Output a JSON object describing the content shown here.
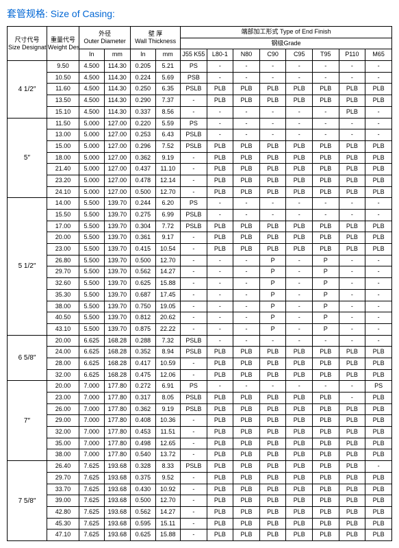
{
  "title": "套管规格: Size of Casing:",
  "headers": {
    "size_cn": "尺寸代号",
    "size_en": "Size Designation",
    "weight_cn": "重量代号",
    "weight_en": "Weight Designation",
    "od_cn": "外径",
    "od_en": "Outer Diameter",
    "wall_cn": "壁 厚",
    "wall_en": "Wall Thickness",
    "end_cn": "端部加工形式",
    "end_en": "Type of End Finish",
    "grade_cn": "钢级",
    "grade_en": "Grade",
    "in": "In",
    "mm": "mm",
    "grades": [
      "J55 K55",
      "L80-1",
      "N80",
      "C90",
      "C95",
      "T95",
      "P110",
      "M65"
    ]
  },
  "groups": [
    {
      "size": "4 1/2″",
      "rows": [
        {
          "w": "9.50",
          "oi": "4.500",
          "om": "114.30",
          "wi": "0.205",
          "wm": "5.21",
          "g": [
            "PS",
            "-",
            "-",
            "-",
            "-",
            "-",
            "-",
            "-"
          ]
        },
        {
          "w": "10.50",
          "oi": "4.500",
          "om": "114.30",
          "wi": "0.224",
          "wm": "5.69",
          "g": [
            "PSB",
            "-",
            "-",
            "-",
            "-",
            "-",
            "-",
            "-"
          ]
        },
        {
          "w": "11.60",
          "oi": "4.500",
          "om": "114.30",
          "wi": "0.250",
          "wm": "6.35",
          "g": [
            "PSLB",
            "PLB",
            "PLB",
            "PLB",
            "PLB",
            "PLB",
            "PLB",
            "PLB"
          ]
        },
        {
          "w": "13.50",
          "oi": "4.500",
          "om": "114.30",
          "wi": "0.290",
          "wm": "7.37",
          "g": [
            "-",
            "PLB",
            "PLB",
            "PLB",
            "PLB",
            "PLB",
            "PLB",
            "PLB"
          ]
        },
        {
          "w": "15.10",
          "oi": "4.500",
          "om": "114.30",
          "wi": "0.337",
          "wm": "8.56",
          "g": [
            "-",
            "-",
            "-",
            "-",
            "-",
            "-",
            "PLB",
            "-"
          ]
        }
      ]
    },
    {
      "size": "5″",
      "rows": [
        {
          "w": "11.50",
          "oi": "5.000",
          "om": "127.00",
          "wi": "0.220",
          "wm": "5.59",
          "g": [
            "PS",
            "-",
            "-",
            "-",
            "-",
            "-",
            "-",
            "-"
          ]
        },
        {
          "w": "13.00",
          "oi": "5.000",
          "om": "127.00",
          "wi": "0.253",
          "wm": "6.43",
          "g": [
            "PSLB",
            "-",
            "-",
            "-",
            "-",
            "-",
            "-",
            "-"
          ]
        },
        {
          "w": "15.00",
          "oi": "5.000",
          "om": "127.00",
          "wi": "0.296",
          "wm": "7.52",
          "g": [
            "PSLB",
            "PLB",
            "PLB",
            "PLB",
            "PLB",
            "PLB",
            "PLB",
            "PLB"
          ]
        },
        {
          "w": "18.00",
          "oi": "5.000",
          "om": "127.00",
          "wi": "0.362",
          "wm": "9.19",
          "g": [
            "-",
            "PLB",
            "PLB",
            "PLB",
            "PLB",
            "PLB",
            "PLB",
            "PLB"
          ]
        },
        {
          "w": "21.40",
          "oi": "5.000",
          "om": "127.00",
          "wi": "0.437",
          "wm": "11.10",
          "g": [
            "-",
            "PLB",
            "PLB",
            "PLB",
            "PLB",
            "PLB",
            "PLB",
            "PLB"
          ]
        },
        {
          "w": "23.20",
          "oi": "5.000",
          "om": "127.00",
          "wi": "0.478",
          "wm": "12.14",
          "g": [
            "-",
            "PLB",
            "PLB",
            "PLB",
            "PLB",
            "PLB",
            "PLB",
            "PLB"
          ]
        },
        {
          "w": "24.10",
          "oi": "5.000",
          "om": "127.00",
          "wi": "0.500",
          "wm": "12.70",
          "g": [
            "-",
            "PLB",
            "PLB",
            "PLB",
            "PLB",
            "PLB",
            "PLB",
            "PLB"
          ]
        }
      ]
    },
    {
      "size": "5 1/2″",
      "rows": [
        {
          "w": "14.00",
          "oi": "5.500",
          "om": "139.70",
          "wi": "0.244",
          "wm": "6.20",
          "g": [
            "PS",
            "-",
            "-",
            "-",
            "-",
            "-",
            "-",
            "-"
          ]
        },
        {
          "w": "15.50",
          "oi": "5.500",
          "om": "139.70",
          "wi": "0.275",
          "wm": "6.99",
          "g": [
            "PSLB",
            "-",
            "-",
            "-",
            "-",
            "-",
            "-",
            "-"
          ]
        },
        {
          "w": "17.00",
          "oi": "5.500",
          "om": "139.70",
          "wi": "0.304",
          "wm": "7.72",
          "g": [
            "PSLB",
            "PLB",
            "PLB",
            "PLB",
            "PLB",
            "PLB",
            "PLB",
            "PLB"
          ]
        },
        {
          "w": "20.00",
          "oi": "5.500",
          "om": "139.70",
          "wi": "0.361",
          "wm": "9.17",
          "g": [
            "-",
            "PLB",
            "PLB",
            "PLB",
            "PLB",
            "PLB",
            "PLB",
            "PLB"
          ]
        },
        {
          "w": "23.00",
          "oi": "5.500",
          "om": "139.70",
          "wi": "0.415",
          "wm": "10.54",
          "g": [
            "-",
            "PLB",
            "PLB",
            "PLB",
            "PLB",
            "PLB",
            "PLB",
            "PLB"
          ]
        },
        {
          "w": "26.80",
          "oi": "5.500",
          "om": "139.70",
          "wi": "0.500",
          "wm": "12.70",
          "g": [
            "-",
            "-",
            "-",
            "P",
            "-",
            "P",
            "-",
            "-"
          ]
        },
        {
          "w": "29.70",
          "oi": "5.500",
          "om": "139.70",
          "wi": "0.562",
          "wm": "14.27",
          "g": [
            "-",
            "-",
            "-",
            "P",
            "-",
            "P",
            "-",
            "-"
          ]
        },
        {
          "w": "32.60",
          "oi": "5.500",
          "om": "139.70",
          "wi": "0.625",
          "wm": "15.88",
          "g": [
            "-",
            "-",
            "-",
            "P",
            "-",
            "P",
            "-",
            "-"
          ]
        },
        {
          "w": "35.30",
          "oi": "5.500",
          "om": "139.70",
          "wi": "0.687",
          "wm": "17.45",
          "g": [
            "-",
            "-",
            "-",
            "P",
            "-",
            "P",
            "-",
            "-"
          ]
        },
        {
          "w": "38.00",
          "oi": "5.500",
          "om": "139.70",
          "wi": "0.750",
          "wm": "19.05",
          "g": [
            "-",
            "-",
            "-",
            "P",
            "-",
            "P",
            "-",
            "-"
          ]
        },
        {
          "w": "40.50",
          "oi": "5.500",
          "om": "139.70",
          "wi": "0.812",
          "wm": "20.62",
          "g": [
            "-",
            "-",
            "-",
            "P",
            "-",
            "P",
            "-",
            "-"
          ]
        },
        {
          "w": "43.10",
          "oi": "5.500",
          "om": "139.70",
          "wi": "0.875",
          "wm": "22.22",
          "g": [
            "-",
            "-",
            "-",
            "P",
            "-",
            "P",
            "-",
            "-"
          ]
        }
      ]
    },
    {
      "size": "6 5/8″",
      "rows": [
        {
          "w": "20.00",
          "oi": "6.625",
          "om": "168.28",
          "wi": "0.288",
          "wm": "7.32",
          "g": [
            "PSLB",
            "-",
            "-",
            "-",
            "-",
            "-",
            "-",
            "-"
          ]
        },
        {
          "w": "24.00",
          "oi": "6.625",
          "om": "168.28",
          "wi": "0.352",
          "wm": "8.94",
          "g": [
            "PSLB",
            "PLB",
            "PLB",
            "PLB",
            "PLB",
            "PLB",
            "PLB",
            "PLB"
          ]
        },
        {
          "w": "28.00",
          "oi": "6.625",
          "om": "168.28",
          "wi": "0.417",
          "wm": "10.59",
          "g": [
            "-",
            "PLB",
            "PLB",
            "PLB",
            "PLB",
            "PLB",
            "PLB",
            "PLB"
          ]
        },
        {
          "w": "32.00",
          "oi": "6.625",
          "om": "168.28",
          "wi": "0.475",
          "wm": "12.06",
          "g": [
            "-",
            "PLB",
            "PLB",
            "PLB",
            "PLB",
            "PLB",
            "PLB",
            "PLB"
          ]
        }
      ]
    },
    {
      "size": "7″",
      "rows": [
        {
          "w": "20.00",
          "oi": "7.000",
          "om": "177.80",
          "wi": "0.272",
          "wm": "6.91",
          "g": [
            "PS",
            "-",
            "-",
            "-",
            "-",
            "-",
            "-",
            "PS"
          ]
        },
        {
          "w": "23.00",
          "oi": "7.000",
          "om": "177.80",
          "wi": "0.317",
          "wm": "8.05",
          "g": [
            "PSLB",
            "PLB",
            "PLB",
            "PLB",
            "PLB",
            "PLB",
            "-",
            "PLB"
          ]
        },
        {
          "w": "26.00",
          "oi": "7.000",
          "om": "177.80",
          "wi": "0.362",
          "wm": "9.19",
          "g": [
            "PSLB",
            "PLB",
            "PLB",
            "PLB",
            "PLB",
            "PLB",
            "PLB",
            "PLB"
          ]
        },
        {
          "w": "29.00",
          "oi": "7.000",
          "om": "177.80",
          "wi": "0.408",
          "wm": "10.36",
          "g": [
            "-",
            "PLB",
            "PLB",
            "PLB",
            "PLB",
            "PLB",
            "PLB",
            "PLB"
          ]
        },
        {
          "w": "32.00",
          "oi": "7.000",
          "om": "177.80",
          "wi": "0.453",
          "wm": "11.51",
          "g": [
            "-",
            "PLB",
            "PLB",
            "PLB",
            "PLB",
            "PLB",
            "PLB",
            "PLB"
          ]
        },
        {
          "w": "35.00",
          "oi": "7.000",
          "om": "177.80",
          "wi": "0.498",
          "wm": "12.65",
          "g": [
            "-",
            "PLB",
            "PLB",
            "PLB",
            "PLB",
            "PLB",
            "PLB",
            "PLB"
          ]
        },
        {
          "w": "38.00",
          "oi": "7.000",
          "om": "177.80",
          "wi": "0.540",
          "wm": "13.72",
          "g": [
            "-",
            "PLB",
            "PLB",
            "PLB",
            "PLB",
            "PLB",
            "PLB",
            "PLB"
          ]
        }
      ]
    },
    {
      "size": "7 5/8″",
      "rows": [
        {
          "w": "26.40",
          "oi": "7.625",
          "om": "193.68",
          "wi": "0.328",
          "wm": "8.33",
          "g": [
            "PSLB",
            "PLB",
            "PLB",
            "PLB",
            "PLB",
            "PLB",
            "PLB",
            "-"
          ]
        },
        {
          "w": "29.70",
          "oi": "7.625",
          "om": "193.68",
          "wi": "0.375",
          "wm": "9.52",
          "g": [
            "-",
            "PLB",
            "PLB",
            "PLB",
            "PLB",
            "PLB",
            "PLB",
            "PLB"
          ]
        },
        {
          "w": "33.70",
          "oi": "7.625",
          "om": "193.68",
          "wi": "0.430",
          "wm": "10.92",
          "g": [
            "-",
            "PLB",
            "PLB",
            "PLB",
            "PLB",
            "PLB",
            "PLB",
            "PLB"
          ]
        },
        {
          "w": "39.00",
          "oi": "7.625",
          "om": "193.68",
          "wi": "0.500",
          "wm": "12.70",
          "g": [
            "-",
            "PLB",
            "PLB",
            "PLB",
            "PLB",
            "PLB",
            "PLB",
            "PLB"
          ]
        },
        {
          "w": "42.80",
          "oi": "7.625",
          "om": "193.68",
          "wi": "0.562",
          "wm": "14.27",
          "g": [
            "-",
            "PLB",
            "PLB",
            "PLB",
            "PLB",
            "PLB",
            "PLB",
            "PLB"
          ]
        },
        {
          "w": "45.30",
          "oi": "7.625",
          "om": "193.68",
          "wi": "0.595",
          "wm": "15.11",
          "g": [
            "-",
            "PLB",
            "PLB",
            "PLB",
            "PLB",
            "PLB",
            "PLB",
            "PLB"
          ]
        },
        {
          "w": "47.10",
          "oi": "7.625",
          "om": "193.68",
          "wi": "0.625",
          "wm": "15.88",
          "g": [
            "-",
            "PLB",
            "PLB",
            "PLB",
            "PLB",
            "PLB",
            "PLB",
            "PLB"
          ]
        }
      ]
    }
  ]
}
